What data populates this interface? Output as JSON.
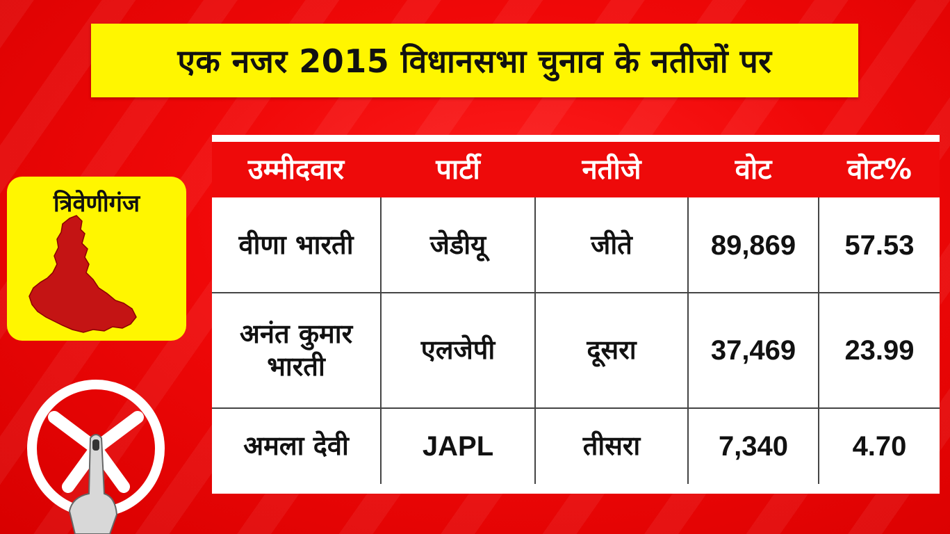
{
  "title": "एक नजर 2015 विधानसभा चुनाव के नतीजों पर",
  "constituency": "त्रिवेणीगंज",
  "table": {
    "headers": [
      "उम्मीदवार",
      "पार्टी",
      "नतीजे",
      "वोट",
      "वोट%"
    ],
    "rows": [
      {
        "candidate": "वीणा भारती",
        "party": "जेडीयू",
        "result": "जीते",
        "votes": "89,869",
        "vote_pct": "57.53"
      },
      {
        "candidate": "अनंत कुमार भारती",
        "party": "एलजेपी",
        "result": "दूसरा",
        "votes": "37,469",
        "vote_pct": "23.99"
      },
      {
        "candidate": "अमला देवी",
        "party": "JAPL",
        "result": "तीसरा",
        "votes": "7,340",
        "vote_pct": "4.70"
      }
    ]
  },
  "colors": {
    "background": "#f00808",
    "banner": "#fff600",
    "header_row": "#ee0a0a",
    "map": "#c41414"
  },
  "icons": {
    "map": "constituency-map-icon",
    "election": "election-symbol-icon"
  }
}
